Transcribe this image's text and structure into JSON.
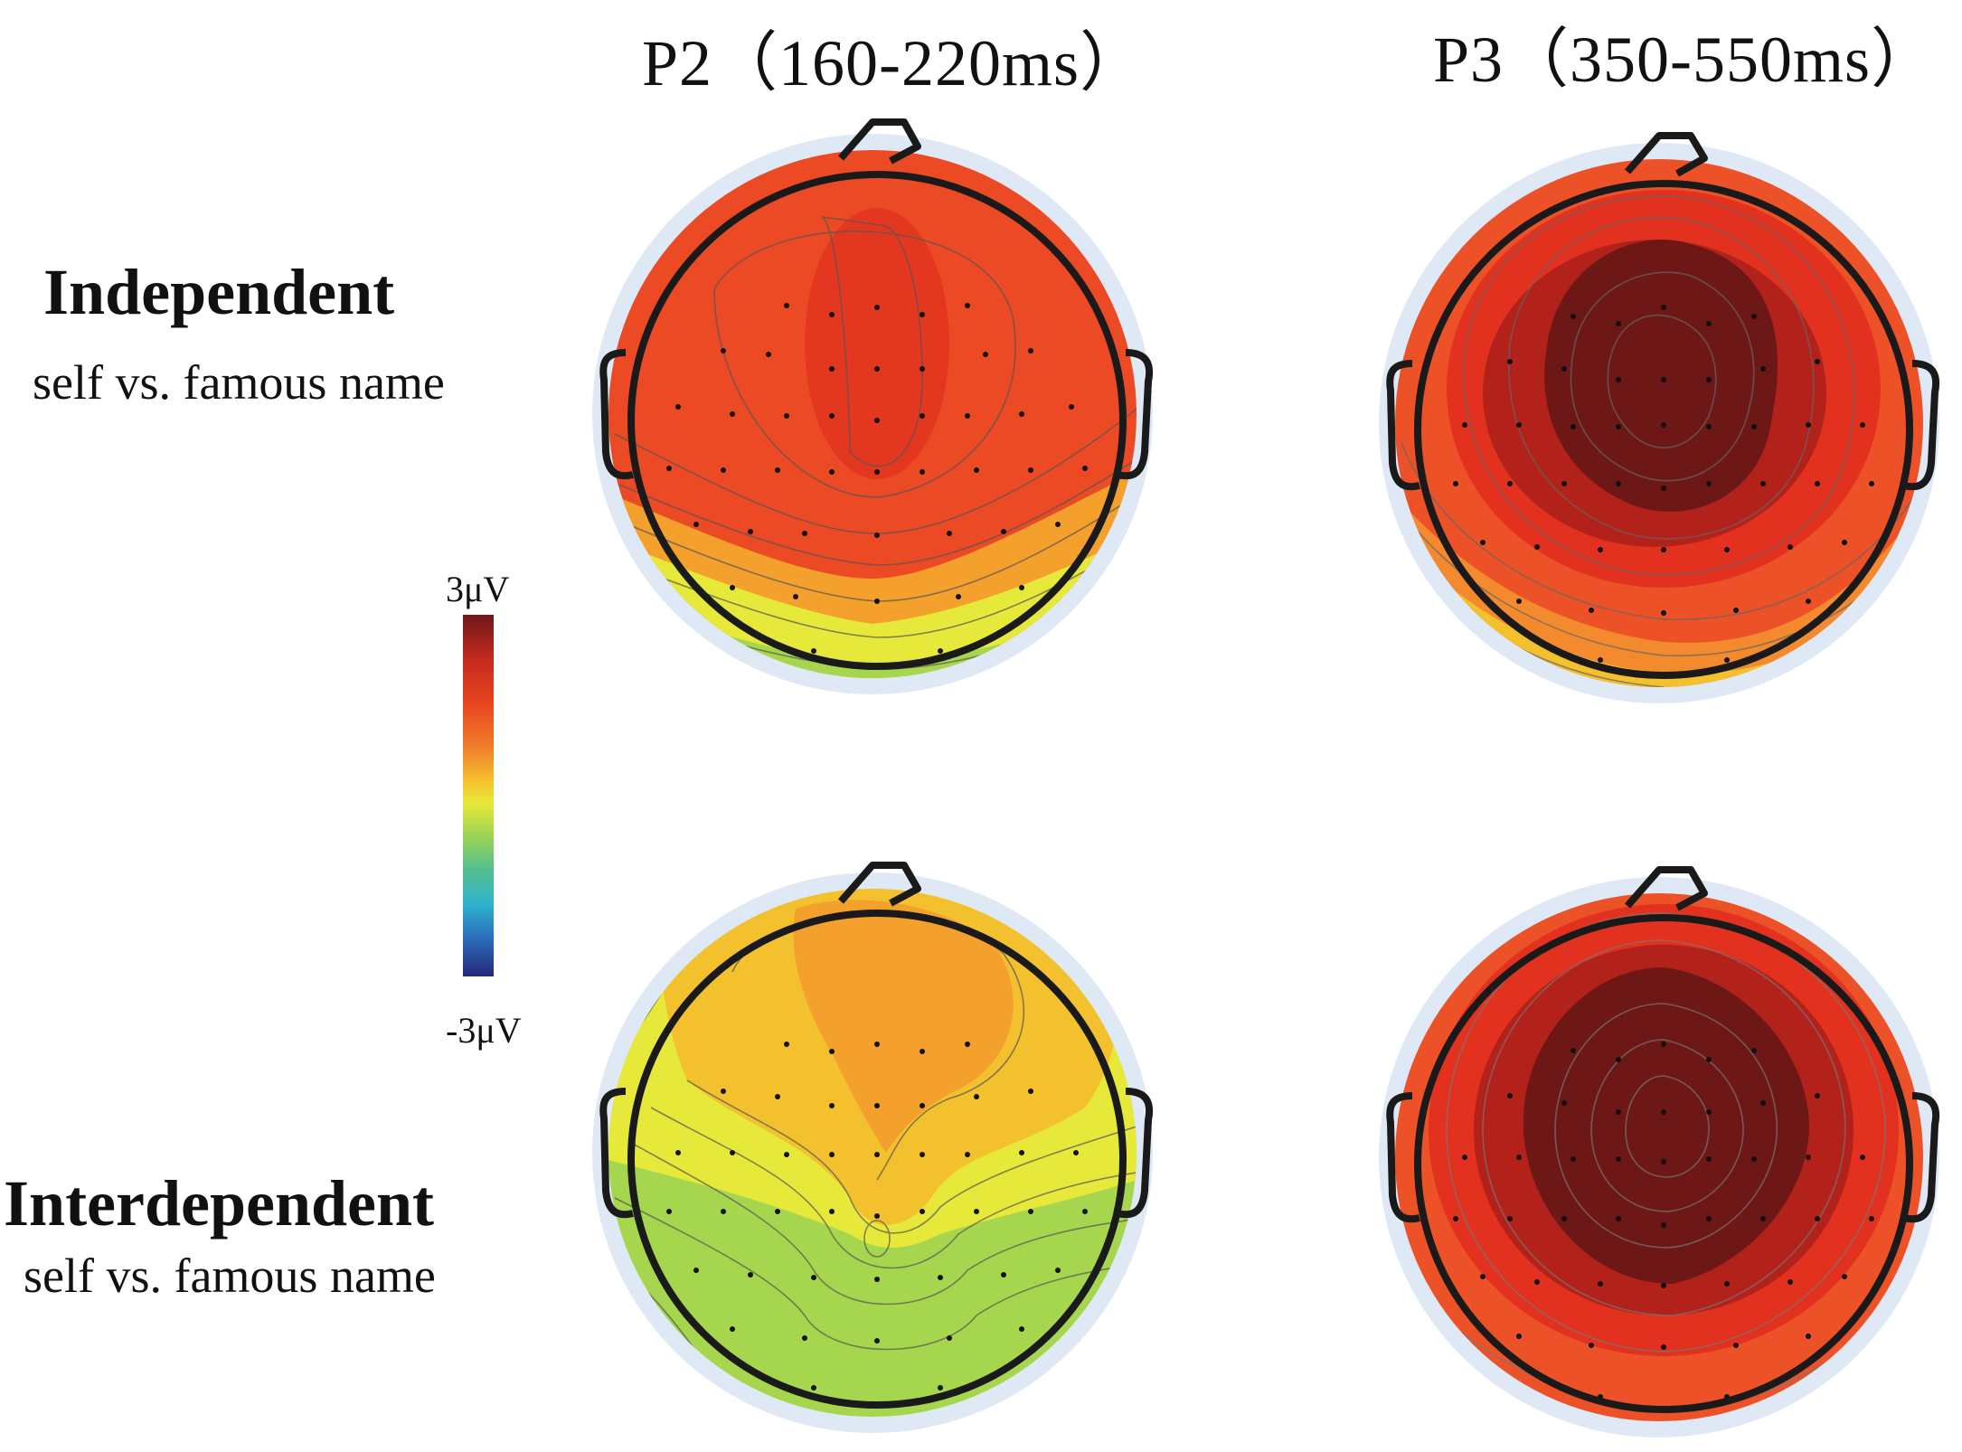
{
  "columns": [
    {
      "label": "P2",
      "range": "（160-220ms）"
    },
    {
      "label": "P3",
      "range": "（350-550ms）"
    }
  ],
  "rows": [
    {
      "title": "Independent",
      "subtitle": "self vs. famous name"
    },
    {
      "title": "Interdependent",
      "subtitle": "self vs. famous name"
    }
  ],
  "colorbar": {
    "max_label": "3μV",
    "min_label": "-3μV"
  },
  "colors": {
    "darkred": "#6e1717",
    "red": "#e8431f",
    "orange": "#f4a02c",
    "yellow": "#e7e93a",
    "green": "#8fcd67",
    "teal": "#56c08b",
    "head_outline": "#1a1a1a",
    "halo": "#dfe9f6"
  }
}
